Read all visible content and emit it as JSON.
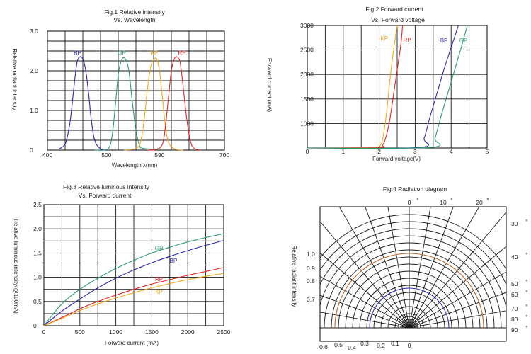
{
  "colors": {
    "BP": "#2a2aa8",
    "GP": "#2e9a6e",
    "KP": "#f0a820",
    "RP": "#e02828",
    "grid": "#1a1a1a",
    "radial_iso": "#b8642a"
  },
  "chart_data": [
    {
      "id": "fig1",
      "type": "line",
      "title": "Fig.1 Relative intensity",
      "subtitle": "Vs. Wavelength",
      "xlabel": "Wavelength λ(nm)",
      "ylabel": "Relative radiant intensity",
      "xlim": [
        400,
        700
      ],
      "ylim": [
        0,
        3.0
      ],
      "xticks": [
        "400",
        "500",
        "590",
        "700"
      ],
      "xtick_values": [
        400,
        500,
        590,
        700
      ],
      "yticks": [
        "0",
        "1.0",
        "2.0",
        "3.0"
      ],
      "ytick_values": [
        0,
        1.0,
        2.0,
        3.0
      ],
      "grid": {
        "x_divisions": 10,
        "y_divisions": 12
      },
      "series": [
        {
          "name": "BP",
          "color_key": "BP",
          "x": [
            420,
            430,
            436,
            440,
            445,
            450,
            455,
            460,
            465,
            470,
            474,
            480,
            490,
            500
          ],
          "y": [
            0.03,
            0.15,
            0.5,
            0.9,
            1.6,
            2.2,
            2.35,
            2.3,
            2.0,
            1.4,
            0.8,
            0.25,
            0.03,
            0
          ]
        },
        {
          "name": "GP",
          "color_key": "GP",
          "x": [
            480,
            495,
            505,
            510,
            515,
            520,
            526,
            532,
            538,
            544,
            550,
            556,
            560,
            570,
            580
          ],
          "y": [
            0,
            0,
            0.08,
            0.4,
            1.1,
            1.9,
            2.28,
            2.3,
            2.0,
            1.2,
            0.5,
            0.12,
            0.05,
            0.03,
            0
          ]
        },
        {
          "name": "KP",
          "color_key": "KP",
          "x": [
            530,
            545,
            555,
            560,
            565,
            570,
            575,
            580,
            585,
            590,
            595,
            600,
            605,
            615,
            630
          ],
          "y": [
            0,
            0.02,
            0.1,
            0.35,
            0.9,
            1.6,
            2.1,
            2.28,
            2.3,
            2.0,
            1.3,
            0.6,
            0.2,
            0.03,
            0
          ]
        },
        {
          "name": "RP",
          "color_key": "RP",
          "x": [
            570,
            585,
            595,
            600,
            605,
            610,
            615,
            620,
            625,
            630,
            636,
            642,
            648,
            660
          ],
          "y": [
            0,
            0.02,
            0.15,
            0.6,
            1.3,
            2.0,
            2.3,
            2.35,
            2.2,
            1.6,
            0.8,
            0.25,
            0.05,
            0
          ]
        }
      ],
      "series_labels": [
        {
          "text": "BP",
          "color_key": "BP",
          "x": 451,
          "y": 2.4
        },
        {
          "text": "GP",
          "color_key": "GP",
          "x": 526,
          "y": 2.4
        },
        {
          "text": "KP",
          "color_key": "KP",
          "x": 581,
          "y": 2.4
        },
        {
          "text": "RP",
          "color_key": "RP",
          "x": 628,
          "y": 2.4
        }
      ]
    },
    {
      "id": "fig2",
      "type": "line",
      "title": "Fig.2 Forward current",
      "subtitle": "Vs. Forward voltage",
      "xlabel": "Forward voltage(V)",
      "ylabel": "Forward current (mA)",
      "xlim": [
        0,
        5
      ],
      "ylim": [
        500,
        3000
      ],
      "xticks": [
        "0",
        "1",
        "2",
        "3",
        "4",
        "5"
      ],
      "xtick_values": [
        0,
        1,
        2,
        3,
        4,
        5
      ],
      "yticks": [
        "1000",
        "1500",
        "2000",
        "2500",
        "3000"
      ],
      "ytick_values": [
        1000,
        1500,
        2000,
        2500,
        3000
      ],
      "grid": {
        "x_divisions": 10,
        "y_divisions": 5
      },
      "series": [
        {
          "name": "KP",
          "color_key": "KP",
          "x": [
            0,
            1.9,
            2.02,
            2.1,
            2.2,
            2.3,
            2.4,
            2.5
          ],
          "y": [
            500,
            510,
            540,
            700,
            1200,
            1900,
            2500,
            3000
          ]
        },
        {
          "name": "RP",
          "color_key": "RP",
          "x": [
            0,
            1.95,
            2.1,
            2.2,
            2.3,
            2.4,
            2.5,
            2.6,
            2.65
          ],
          "y": [
            500,
            505,
            560,
            760,
            1100,
            1600,
            2100,
            2600,
            3000
          ]
        },
        {
          "name": "BP",
          "color_key": "BP",
          "x": [
            0,
            3.1,
            3.25,
            3.4,
            3.6,
            3.8,
            4.0,
            4.2
          ],
          "y": [
            500,
            510,
            700,
            1100,
            1600,
            2100,
            2550,
            3000
          ]
        },
        {
          "name": "GP",
          "color_key": "GP",
          "x": [
            0,
            3.4,
            3.55,
            3.7,
            3.9,
            4.1,
            4.3,
            4.45
          ],
          "y": [
            500,
            510,
            700,
            1100,
            1600,
            2100,
            2600,
            3000
          ]
        }
      ],
      "series_labels": [
        {
          "text": "KP",
          "color_key": "KP",
          "x": 2.14,
          "y": 2700
        },
        {
          "text": "RP",
          "color_key": "RP",
          "x": 2.78,
          "y": 2670
        },
        {
          "text": "BP",
          "color_key": "BP",
          "x": 3.8,
          "y": 2650
        },
        {
          "text": "GP",
          "color_key": "GP",
          "x": 4.34,
          "y": 2650
        }
      ]
    },
    {
      "id": "fig3",
      "type": "line",
      "title": "Fig.3 Relative luminous intensity",
      "subtitle": "Vs. Forward current",
      "xlabel": "Forward current (mA)",
      "ylabel": "Relative luminous intensity(@100mA)",
      "xlim": [
        0,
        2500
      ],
      "ylim": [
        0,
        2.5
      ],
      "xticks": [
        "0",
        "500",
        "1000",
        "1500",
        "2000",
        "2500"
      ],
      "xtick_values": [
        0,
        500,
        1000,
        1500,
        2000,
        2500
      ],
      "yticks": [
        "0",
        "0.5",
        "1.0",
        "1.5",
        "2.0",
        "2.5"
      ],
      "ytick_values": [
        0,
        0.5,
        1.0,
        1.5,
        2.0,
        2.5
      ],
      "grid": {
        "x_divisions": 10,
        "y_divisions": 10
      },
      "series": [
        {
          "name": "GP",
          "color_key": "GP",
          "x": [
            0,
            250,
            500,
            750,
            1000,
            1250,
            1500,
            1750,
            2000,
            2250,
            2500
          ],
          "y": [
            0,
            0.45,
            0.75,
            0.98,
            1.18,
            1.35,
            1.5,
            1.62,
            1.73,
            1.82,
            1.9
          ]
        },
        {
          "name": "BP",
          "color_key": "BP",
          "x": [
            0,
            250,
            500,
            750,
            1000,
            1250,
            1500,
            1750,
            2000,
            2250,
            2500
          ],
          "y": [
            0,
            0.3,
            0.55,
            0.78,
            0.98,
            1.15,
            1.3,
            1.43,
            1.55,
            1.66,
            1.76
          ]
        },
        {
          "name": "RP",
          "color_key": "RP",
          "x": [
            0,
            250,
            500,
            750,
            1000,
            1250,
            1500,
            1750,
            2000,
            2250,
            2500
          ],
          "y": [
            0,
            0.17,
            0.35,
            0.5,
            0.63,
            0.75,
            0.86,
            0.95,
            1.04,
            1.12,
            1.2
          ]
        },
        {
          "name": "KP",
          "color_key": "KP",
          "x": [
            0,
            250,
            500,
            750,
            1000,
            1250,
            1500,
            1750,
            2000,
            2250,
            2500
          ],
          "y": [
            0,
            0.15,
            0.31,
            0.45,
            0.57,
            0.68,
            0.78,
            0.87,
            0.95,
            1.02,
            1.08
          ]
        }
      ],
      "series_labels": [
        {
          "text": "GP",
          "color_key": "GP",
          "x": 1600,
          "y": 1.56
        },
        {
          "text": "BP",
          "color_key": "BP",
          "x": 1800,
          "y": 1.3
        },
        {
          "text": "RP",
          "color_key": "RP",
          "x": 1600,
          "y": 0.92
        },
        {
          "text": "KP",
          "color_key": "KP",
          "x": 1600,
          "y": 0.66
        }
      ]
    },
    {
      "id": "fig4",
      "type": "polar",
      "title": "Fig.4  Radiation diagram",
      "ylabel": "Relative radiant intensity",
      "angle_labels": [
        {
          "text": "0",
          "angle": 0,
          "deg": "°"
        },
        {
          "text": "10",
          "angle": 10,
          "deg": "°"
        },
        {
          "text": "20",
          "angle": 20,
          "deg": "°"
        },
        {
          "text": "30",
          "angle": 30,
          "deg": "°"
        },
        {
          "text": "40",
          "angle": 40,
          "deg": "°"
        },
        {
          "text": "50",
          "angle": 50,
          "deg": "°"
        },
        {
          "text": "60",
          "angle": 60,
          "deg": "°"
        },
        {
          "text": "70",
          "angle": 70,
          "deg": "°"
        },
        {
          "text": "80",
          "angle": 80,
          "deg": "°"
        },
        {
          "text": "90",
          "angle": 90,
          "deg": "°"
        }
      ],
      "intensity_labels": [
        "1.0",
        "0.9",
        "0.8",
        "0.7"
      ],
      "intensity_values": [
        1.0,
        0.9,
        0.8,
        0.7
      ],
      "bottom_labels": [
        "0.6",
        "0.5",
        "0.4",
        "0.3",
        "0.2",
        "0.1",
        "0"
      ],
      "bottom_values": [
        0.6,
        0.5,
        0.4,
        0.3,
        0.2,
        0.1,
        0
      ],
      "grid_radii": [
        0.1,
        0.2,
        0.3,
        0.4,
        0.5,
        0.6,
        0.7,
        0.8,
        0.9,
        1.0,
        1.1,
        1.2,
        1.3,
        1.4,
        1.5,
        1.6
      ],
      "curves": [
        {
          "name": "outer",
          "color_key": "radial_iso",
          "r": 1.05
        },
        {
          "name": "inner",
          "color_key": "BP",
          "r": 0.56
        }
      ]
    }
  ]
}
